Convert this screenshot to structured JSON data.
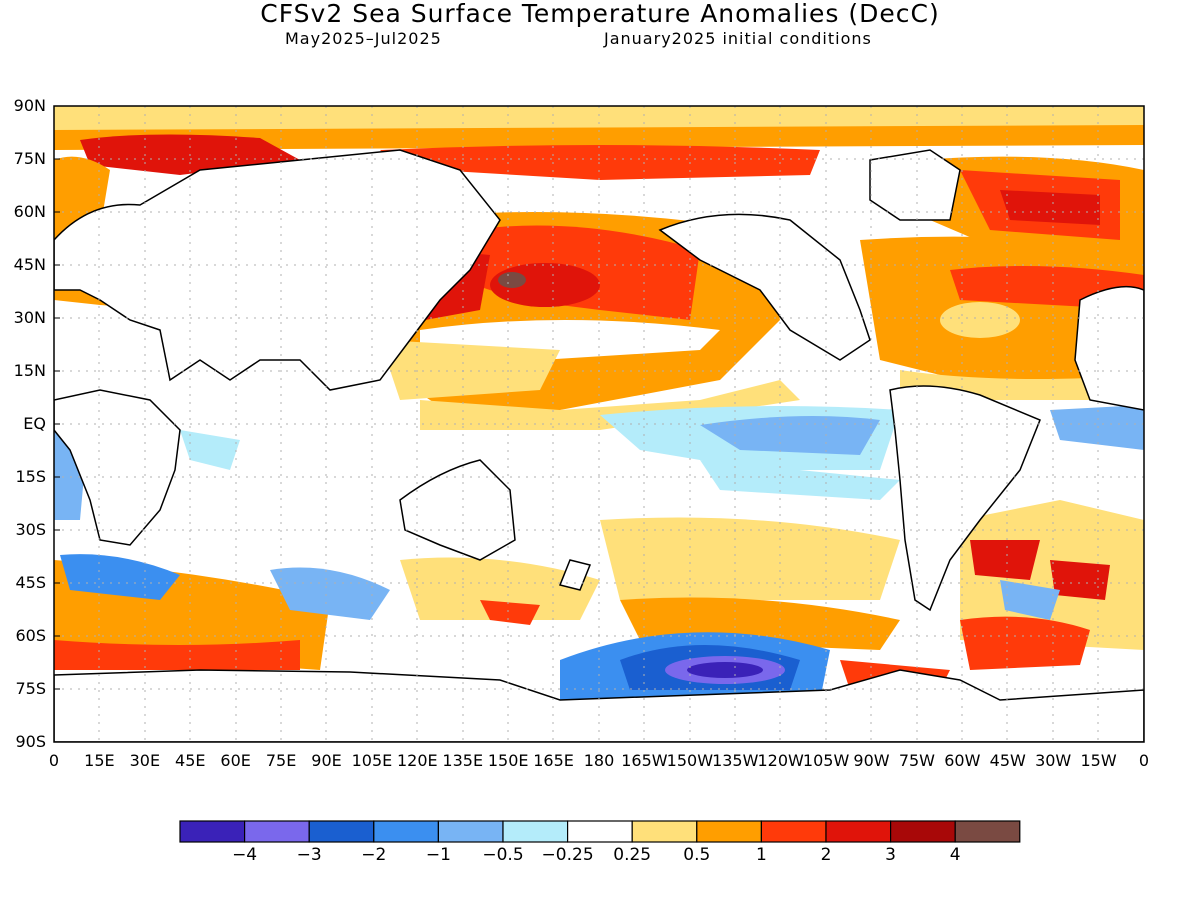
{
  "header": {
    "title": "CFSv2 Sea Surface Temperature Anomalies (DecC)",
    "period": "May2025–Jul2025",
    "initial_conditions": "January2025 initial conditions"
  },
  "map": {
    "lat_labels": [
      "90N",
      "75N",
      "60N",
      "45N",
      "30N",
      "15N",
      "EQ",
      "15S",
      "30S",
      "45S",
      "60S",
      "75S",
      "90S"
    ],
    "lon_labels": [
      "0",
      "15E",
      "30E",
      "45E",
      "60E",
      "75E",
      "90E",
      "105E",
      "120E",
      "135E",
      "150E",
      "165E",
      "180",
      "165W",
      "150W",
      "135W",
      "120W",
      "105W",
      "90W",
      "75W",
      "60W",
      "45W",
      "30W",
      "15W",
      "0"
    ]
  },
  "colorbar": {
    "colors": [
      "#3a22b8",
      "#7a68ec",
      "#1a5fd0",
      "#3b8ff0",
      "#78b4f4",
      "#b4ecfa",
      "#ffffff",
      "#ffe07a",
      "#ff9e00",
      "#ff3a0a",
      "#e0140a",
      "#a80808",
      "#7a4a42"
    ],
    "labels": [
      "−4",
      "−3",
      "−2",
      "−1",
      "−0.5",
      "−0.25",
      "0.25",
      "0.5",
      "1",
      "2",
      "3",
      "4"
    ]
  }
}
